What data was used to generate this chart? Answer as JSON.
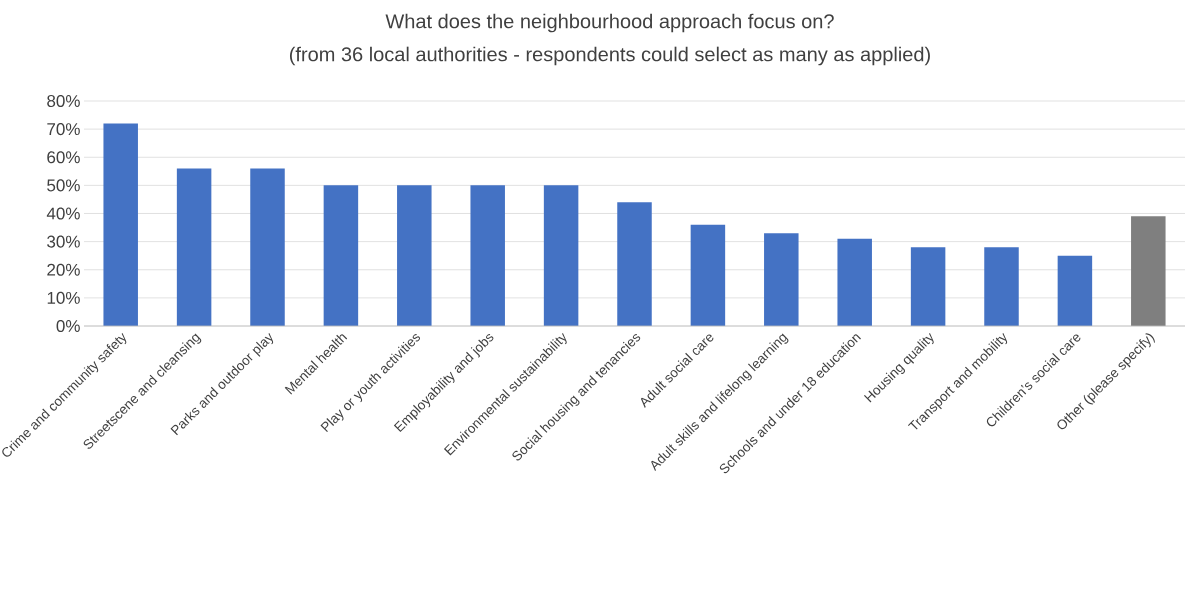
{
  "chart_data": {
    "type": "bar",
    "title": "What does the neighbourhood approach focus on?",
    "subtitle": "(from 36 local authorities - respondents could select as many as applied)",
    "categories": [
      "Crime and community safety",
      "Streetscene and cleansing",
      "Parks and outdoor play",
      "Mental health",
      "Play or youth activities",
      "Employability and jobs",
      "Environmental sustainability",
      "Social housing and tenancies",
      "Adult social care",
      "Adult skills and lifelong learning",
      "Schools and under 18 education",
      "Housing quality",
      "Transport and mobility",
      "Children’s social care",
      "Other (please specify)"
    ],
    "values": [
      72,
      56,
      56,
      50,
      50,
      50,
      50,
      44,
      36,
      33,
      31,
      28,
      28,
      25,
      39
    ],
    "colors": [
      "#4472c4",
      "#4472c4",
      "#4472c4",
      "#4472c4",
      "#4472c4",
      "#4472c4",
      "#4472c4",
      "#4472c4",
      "#4472c4",
      "#4472c4",
      "#4472c4",
      "#4472c4",
      "#4472c4",
      "#4472c4",
      "#7f7f7f"
    ],
    "ylim": [
      0,
      80
    ],
    "yticks": [
      {
        "value": 0,
        "label": "0%"
      },
      {
        "value": 10,
        "label": "10%"
      },
      {
        "value": 20,
        "label": "20%"
      },
      {
        "value": 30,
        "label": "30%"
      },
      {
        "value": 40,
        "label": "40%"
      },
      {
        "value": 50,
        "label": "50%"
      },
      {
        "value": 60,
        "label": "60%"
      },
      {
        "value": 70,
        "label": "70%"
      },
      {
        "value": 80,
        "label": "80%"
      }
    ],
    "grid": "y"
  }
}
